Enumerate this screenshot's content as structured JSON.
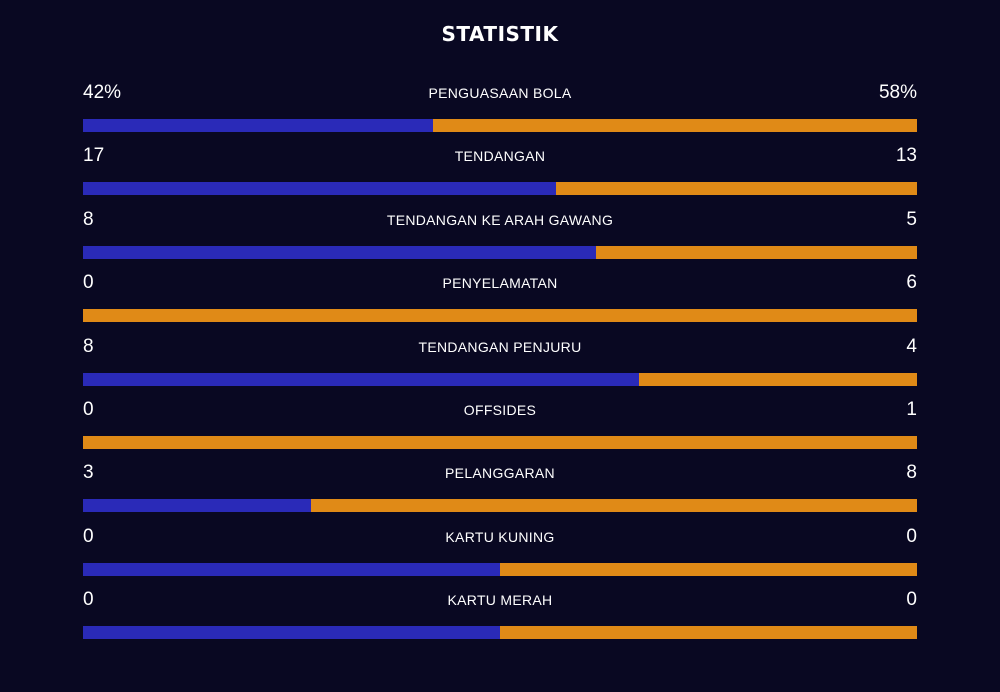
{
  "header": {
    "title": "STATISTIK"
  },
  "colors": {
    "background": "#090822",
    "home_bar": "#2a2ab8",
    "away_bar": "#e08a17"
  },
  "stats": [
    {
      "label": "PENGUASAAN BOLA",
      "home": "42%",
      "away": "58%",
      "home_share": 0.42
    },
    {
      "label": "TENDANGAN",
      "home": "17",
      "away": "13",
      "home_share": 0.567
    },
    {
      "label": "TENDANGAN KE ARAH GAWANG",
      "home": "8",
      "away": "5",
      "home_share": 0.615
    },
    {
      "label": "PENYELAMATAN",
      "home": "0",
      "away": "6",
      "home_share": 0.0
    },
    {
      "label": "TENDANGAN PENJURU",
      "home": "8",
      "away": "4",
      "home_share": 0.667
    },
    {
      "label": "OFFSIDES",
      "home": "0",
      "away": "1",
      "home_share": 0.0
    },
    {
      "label": "PELANGGARAN",
      "home": "3",
      "away": "8",
      "home_share": 0.273
    },
    {
      "label": "KARTU KUNING",
      "home": "0",
      "away": "0",
      "home_share": 0.5
    },
    {
      "label": "KARTU MERAH",
      "home": "0",
      "away": "0",
      "home_share": 0.5
    }
  ]
}
